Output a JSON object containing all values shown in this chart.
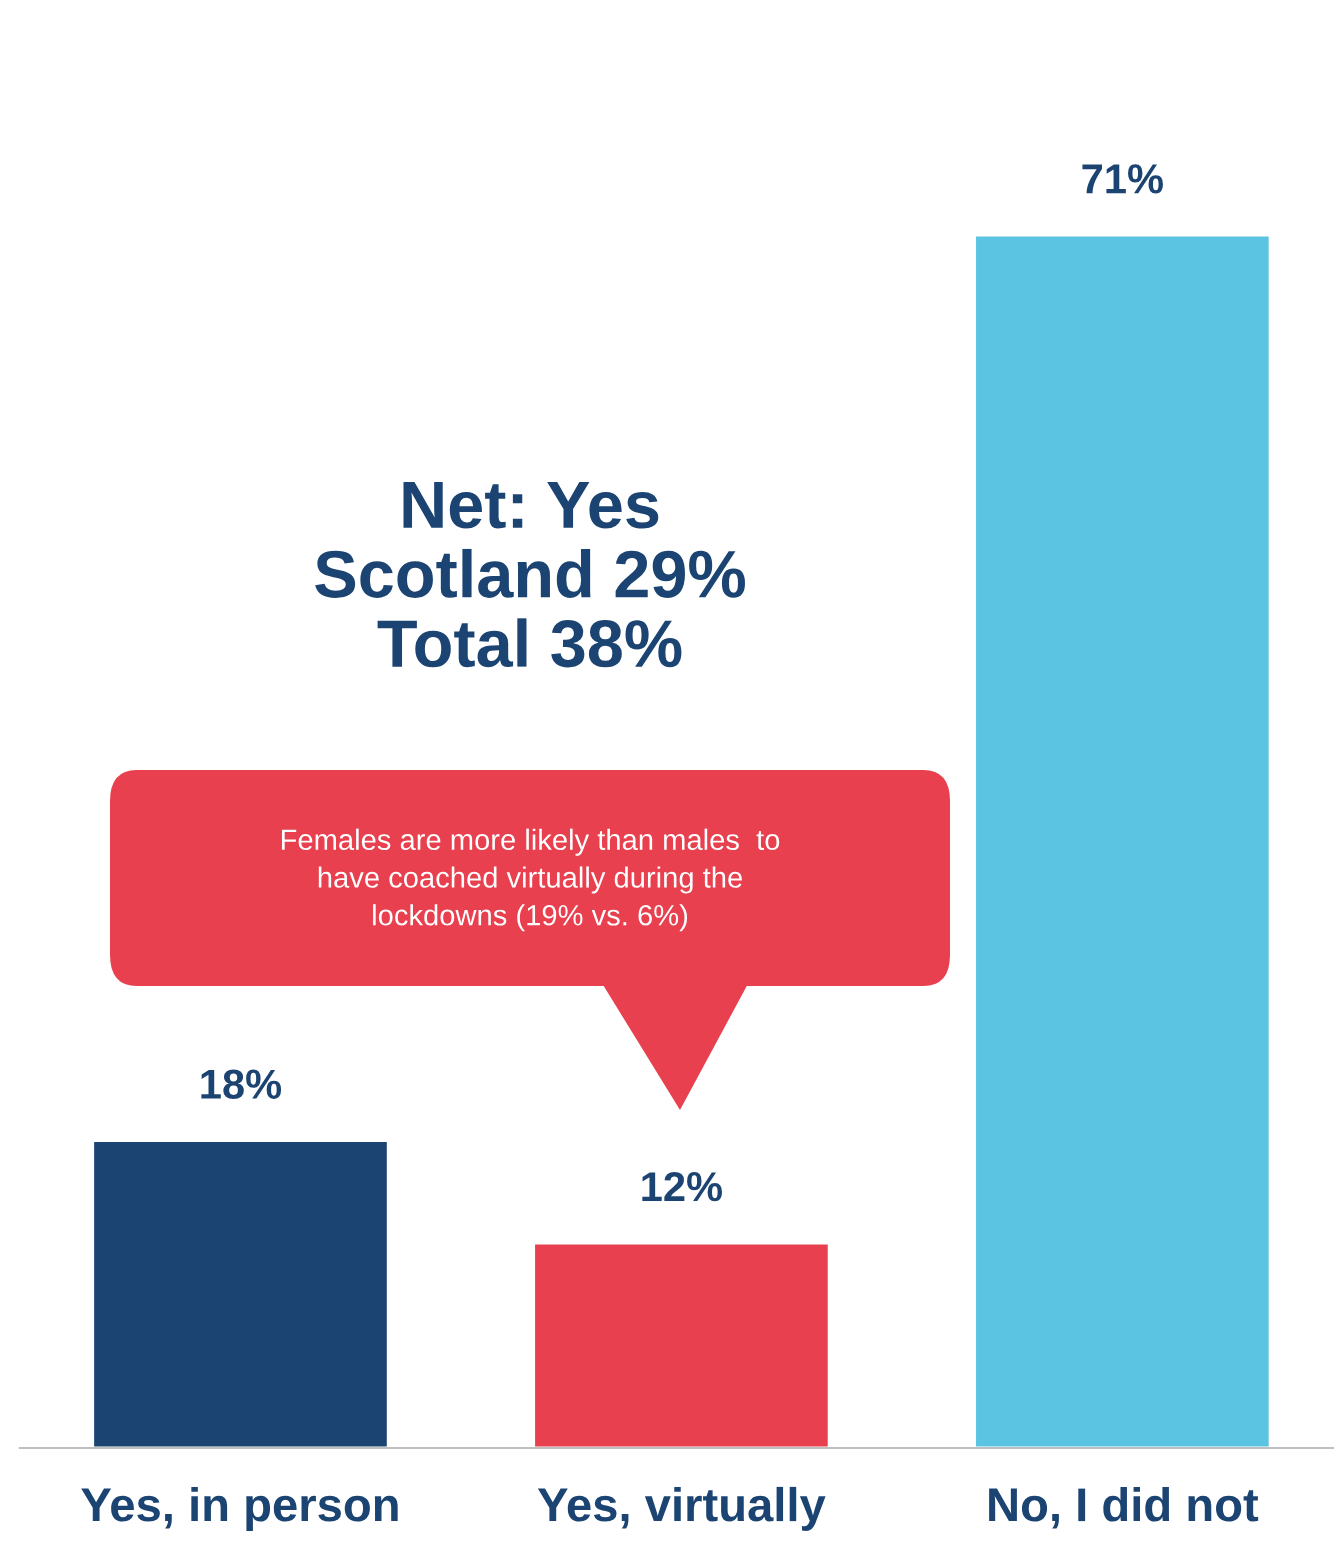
{
  "chart_data": {
    "type": "bar",
    "categories": [
      "Yes, in person",
      "Yes, virtually",
      "No, I did not"
    ],
    "values": [
      18,
      12,
      71
    ],
    "colors": [
      "#1c4472",
      "#e8404f",
      "#5bc4e2"
    ],
    "value_labels": [
      "18%",
      "12%",
      "71%"
    ],
    "annotations": [
      "Net: Yes\nScotland 29%\nTotal 38%",
      "Females are more likely than males  to\nhave coached virtually during the\nlockdowns (19% vs. 6%)"
    ],
    "grid": false,
    "legend": false
  }
}
